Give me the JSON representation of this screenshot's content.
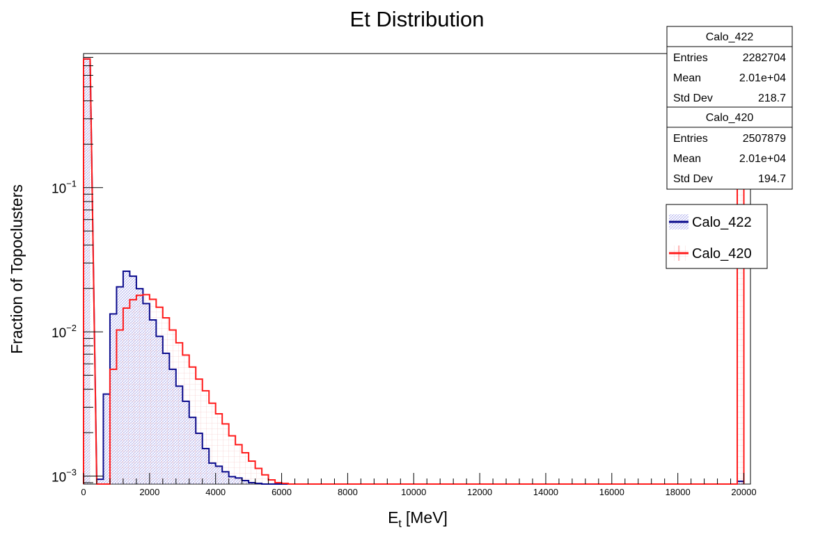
{
  "chart_data": {
    "type": "histogram",
    "title": "Et Distribution",
    "xlabel_main": "E",
    "xlabel_sub": "t",
    "xlabel_unit": "[MeV]",
    "ylabel": "Fraction of Topoclusters",
    "y_scale": "log",
    "xlim": [
      0,
      20200
    ],
    "ylim": [
      0.00088,
      0.85
    ],
    "bin_width": 200,
    "x_ticks": [
      "0",
      "2000",
      "4000",
      "6000",
      "8000",
      "10000",
      "12000",
      "14000",
      "16000",
      "18000",
      "20000"
    ],
    "x_tick_values": [
      0,
      2000,
      4000,
      6000,
      8000,
      10000,
      12000,
      14000,
      16000,
      18000,
      20000
    ],
    "y_major_ticks": [
      {
        "value": 0.001,
        "base": "10",
        "exp": "−3"
      },
      {
        "value": 0.01,
        "base": "10",
        "exp": "−2"
      },
      {
        "value": 0.1,
        "base": "10",
        "exp": "−1"
      }
    ],
    "series": [
      {
        "name": "Calo_422",
        "color": "#0a0a8c",
        "fill": "hatch-blue",
        "first_bin_value": 0.78,
        "last_bin_value": 0.00092,
        "bin_starts": [
          400,
          600,
          800,
          1000,
          1200,
          1400,
          1600,
          1800,
          2000,
          2200,
          2400,
          2600,
          2800,
          3000,
          3200,
          3400,
          3600,
          3800,
          4000,
          4200,
          4400,
          4600,
          4800,
          5000,
          5200,
          5400
        ],
        "values": [
          0.00095,
          0.0037,
          0.0133,
          0.0205,
          0.0263,
          0.0243,
          0.0199,
          0.0157,
          0.0121,
          0.0093,
          0.0071,
          0.0055,
          0.0042,
          0.0033,
          0.00255,
          0.00198,
          0.00155,
          0.00123,
          0.00117,
          0.00107,
          0.00099,
          0.00097,
          0.00093,
          0.0009,
          0.00089,
          0.00088
        ]
      },
      {
        "name": "Calo_420",
        "color": "#ff1a1a",
        "fill": "hatch-red",
        "first_bin_value": 0.78,
        "last_bin_value": 0.78,
        "bin_starts": [
          400,
          600,
          800,
          1000,
          1200,
          1400,
          1600,
          1800,
          2000,
          2200,
          2400,
          2600,
          2800,
          3000,
          3200,
          3400,
          3600,
          3800,
          4000,
          4200,
          4400,
          4600,
          4800,
          5000,
          5200,
          5400,
          5600,
          5800,
          6000,
          6200
        ],
        "values": [
          0.00088,
          0.00088,
          0.0055,
          0.0103,
          0.0146,
          0.0167,
          0.0179,
          0.0181,
          0.0168,
          0.0148,
          0.0125,
          0.0103,
          0.0084,
          0.0069,
          0.0057,
          0.0047,
          0.0039,
          0.0032,
          0.0027,
          0.0023,
          0.0019,
          0.00165,
          0.00145,
          0.00127,
          0.00113,
          0.00102,
          0.00094,
          0.0009,
          0.00089,
          0.00088
        ]
      }
    ],
    "stats_boxes": [
      {
        "name": "Calo_422",
        "rows": [
          [
            "Entries",
            "2282704"
          ],
          [
            "Mean",
            "2.01e+04"
          ],
          [
            "Std Dev",
            "218.7"
          ]
        ]
      },
      {
        "name": "Calo_420",
        "rows": [
          [
            "Entries",
            "2507879"
          ],
          [
            "Mean",
            "2.01e+04"
          ],
          [
            "Std Dev",
            "194.7"
          ]
        ]
      }
    ],
    "legend": {
      "placement": "right",
      "entries": [
        "Calo_422",
        "Calo_420"
      ]
    }
  }
}
